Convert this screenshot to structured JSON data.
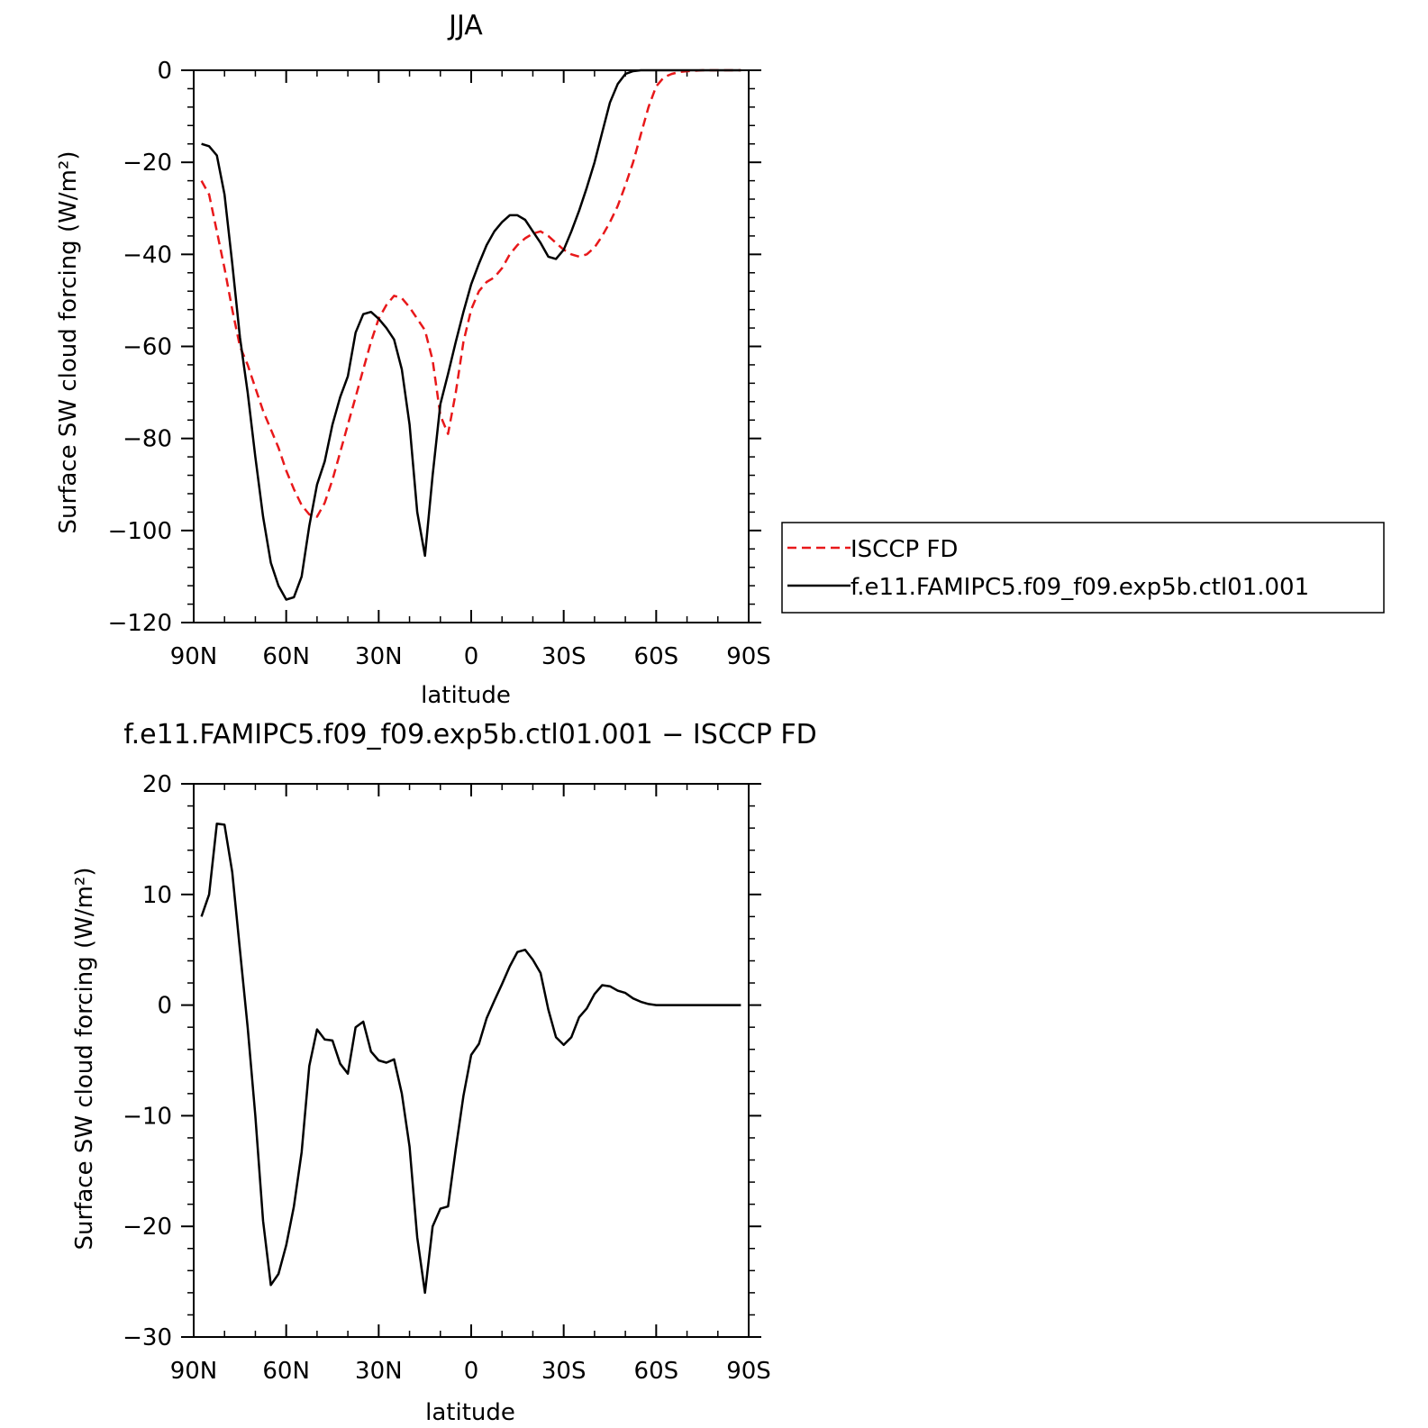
{
  "chart_data": [
    {
      "type": "line",
      "title": "JJA",
      "xlabel": "latitude",
      "ylabel": "Surface SW cloud forcing (W/m²)",
      "xlim": [
        90,
        -90
      ],
      "ylim": [
        -120,
        0
      ],
      "xticks": [
        90,
        60,
        30,
        0,
        -30,
        -60,
        -90
      ],
      "xtick_labels": [
        "90N",
        "60N",
        "30N",
        "0",
        "30S",
        "60S",
        "90S"
      ],
      "yticks": [
        0,
        -20,
        -40,
        -60,
        -80,
        -100,
        -120
      ],
      "ytick_labels": [
        "0",
        "−20",
        "−40",
        "−60",
        "−80",
        "−100",
        "−120"
      ],
      "legend": {
        "placement": "right",
        "entries": [
          "ISCCP FD",
          "f.e11.FAMIPC5.f09_f09.exp5b.ctl01.001"
        ]
      },
      "series": [
        {
          "name": "ISCCP FD",
          "color": "#e8181a",
          "dash": "dashed",
          "x": [
            87.5,
            85,
            82.5,
            80,
            77.5,
            75,
            72.5,
            70,
            67.5,
            65,
            62.5,
            60,
            57.5,
            55,
            52.5,
            50,
            47.5,
            45,
            42.5,
            40,
            37.5,
            35,
            32.5,
            30,
            27.5,
            25,
            22.5,
            20,
            17.5,
            15,
            12.5,
            10,
            7.5,
            5,
            2.5,
            0,
            -2.5,
            -5,
            -7.5,
            -10,
            -12.5,
            -15,
            -17.5,
            -20,
            -22.5,
            -25,
            -27.5,
            -30,
            -32.5,
            -35,
            -37.5,
            -40,
            -42.5,
            -45,
            -47.5,
            -50,
            -52.5,
            -55,
            -57.5,
            -60,
            -62.5,
            -65,
            -67.5,
            -70,
            -72.5,
            -75,
            -77.5,
            -80,
            -82.5,
            -85,
            -87.5
          ],
          "y": [
            -24,
            -27,
            -35,
            -43,
            -52,
            -60,
            -64,
            -69,
            -74,
            -78,
            -82,
            -87,
            -91,
            -94.5,
            -96.5,
            -97,
            -94,
            -89,
            -83,
            -77,
            -71,
            -65,
            -59,
            -54,
            -51,
            -49,
            -49.5,
            -51.5,
            -54,
            -56.5,
            -63,
            -75,
            -79,
            -70,
            -59,
            -52,
            -48,
            -46,
            -45,
            -43,
            -40,
            -38,
            -36.5,
            -35.5,
            -35,
            -36,
            -37.5,
            -39,
            -40,
            -40.5,
            -40,
            -38.5,
            -36,
            -33,
            -29.5,
            -25,
            -20,
            -14,
            -8,
            -3.5,
            -1.5,
            -0.8,
            -0.4,
            -0.2,
            -0.1,
            0,
            0,
            0,
            0,
            0,
            0
          ]
        },
        {
          "name": "f.e11.FAMIPC5.f09_f09.exp5b.ctl01.001",
          "color": "#000000",
          "dash": "solid",
          "x": [
            87.5,
            85,
            82.5,
            80,
            77.5,
            75,
            72.5,
            70,
            67.5,
            65,
            62.5,
            60,
            57.5,
            55,
            52.5,
            50,
            47.5,
            45,
            42.5,
            40,
            37.5,
            35,
            32.5,
            30,
            27.5,
            25,
            22.5,
            20,
            17.5,
            15,
            12.5,
            10,
            7.5,
            5,
            2.5,
            0,
            -2.5,
            -5,
            -7.5,
            -10,
            -12.5,
            -15,
            -17.5,
            -20,
            -22.5,
            -25,
            -27.5,
            -30,
            -32.5,
            -35,
            -37.5,
            -40,
            -42.5,
            -45,
            -47.5,
            -50,
            -52.5,
            -55,
            -57.5,
            -60,
            -62.5,
            -65,
            -67.5,
            -70,
            -72.5,
            -75,
            -77.5,
            -80,
            -82.5,
            -85,
            -87.5
          ],
          "y": [
            -16,
            -16.5,
            -18.5,
            -27,
            -42,
            -58,
            -70,
            -84,
            -97,
            -107,
            -112,
            -115,
            -114.5,
            -110,
            -99,
            -90,
            -85,
            -77,
            -71,
            -66.5,
            -57,
            -53,
            -52.5,
            -54,
            -56,
            -58.5,
            -65,
            -77,
            -96,
            -105.5,
            -88,
            -72.5,
            -66,
            -59,
            -52.5,
            -46.5,
            -42,
            -38,
            -35,
            -33,
            -31.5,
            -31.5,
            -32.5,
            -35,
            -37.5,
            -40.5,
            -41,
            -39,
            -35,
            -30.5,
            -25.5,
            -20,
            -13.5,
            -7,
            -3,
            -0.8,
            -0.2,
            0,
            0,
            0,
            0,
            0,
            0,
            0,
            0,
            0,
            0,
            0,
            0,
            0,
            0
          ]
        }
      ]
    },
    {
      "type": "line",
      "title": "f.e11.FAMIPC5.f09_f09.exp5b.ctl01.001 − ISCCP FD",
      "xlabel": "latitude",
      "ylabel": "Surface SW cloud forcing (W/m²)",
      "xlim": [
        90,
        -90
      ],
      "ylim": [
        -30,
        20
      ],
      "xticks": [
        90,
        60,
        30,
        0,
        -30,
        -60,
        -90
      ],
      "xtick_labels": [
        "90N",
        "60N",
        "30N",
        "0",
        "30S",
        "60S",
        "90S"
      ],
      "yticks": [
        20,
        10,
        0,
        -10,
        -20,
        -30
      ],
      "ytick_labels": [
        "20",
        "10",
        "0",
        "−10",
        "−20",
        "−30"
      ],
      "series": [
        {
          "color": "#000000",
          "dash": "solid",
          "x": [
            87.5,
            85,
            82.5,
            80,
            77.5,
            75,
            72.5,
            70,
            67.5,
            65,
            62.5,
            60,
            57.5,
            55,
            52.5,
            50,
            47.5,
            45,
            42.5,
            40,
            37.5,
            35,
            32.5,
            30,
            27.5,
            25,
            22.5,
            20,
            17.5,
            15,
            12.5,
            10,
            7.5,
            5,
            2.5,
            0,
            -2.5,
            -5,
            -7.5,
            -10,
            -12.5,
            -15,
            -17.5,
            -20,
            -22.5,
            -25,
            -27.5,
            -30,
            -32.5,
            -35,
            -37.5,
            -40,
            -42.5,
            -45,
            -47.5,
            -50,
            -52.5,
            -55,
            -57.5,
            -60,
            -62.5,
            -65,
            -67.5,
            -70,
            -72.5,
            -75,
            -77.5,
            -80,
            -82.5,
            -85,
            -87.5
          ],
          "y": [
            8,
            10,
            16.4,
            16.3,
            12,
            5,
            -2,
            -10,
            -19.5,
            -25.3,
            -24.3,
            -21.7,
            -18.2,
            -13.3,
            -5.5,
            -2.2,
            -3.1,
            -3.2,
            -5.3,
            -6.2,
            -2,
            -1.5,
            -4.2,
            -5,
            -5.2,
            -4.9,
            -8,
            -12.8,
            -21,
            -26,
            -20,
            -18.4,
            -18.2,
            -13,
            -8.2,
            -4.5,
            -3.5,
            -1.2,
            0.4,
            1.9,
            3.5,
            4.8,
            5,
            4.1,
            2.9,
            -0.4,
            -2.9,
            -3.6,
            -2.9,
            -1.1,
            -0.3,
            1,
            1.8,
            1.7,
            1.3,
            1.1,
            0.6,
            0.3,
            0.1,
            0,
            0,
            0,
            0,
            0,
            0,
            0,
            0,
            0,
            0,
            0,
            0
          ]
        }
      ]
    }
  ]
}
